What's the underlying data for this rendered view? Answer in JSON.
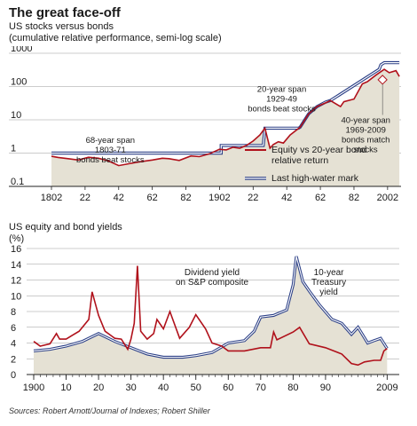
{
  "header": {
    "title": "The great face-off",
    "subtitle": "US stocks versus bonds",
    "subtitle2": "(cumulative relative performance, semi-log scale)"
  },
  "chart_data": [
    {
      "type": "line",
      "yscale": "log",
      "ylim": [
        0.1,
        1000
      ],
      "xlim": [
        1802,
        2010
      ],
      "ytick_labels": [
        "1000",
        "100",
        "10",
        "1",
        "0.1"
      ],
      "yticks": [
        1000,
        100,
        10,
        1,
        0.1
      ],
      "xtick_labels": [
        "1802",
        "22",
        "42",
        "62",
        "82",
        "1902",
        "22",
        "42",
        "62",
        "82",
        "2002"
      ],
      "xticks": [
        1802,
        1822,
        1842,
        1862,
        1882,
        1902,
        1922,
        1942,
        1962,
        1982,
        2002
      ],
      "colors": {
        "equity": "#b0111b",
        "hwm_outer": "#2b3f86",
        "hwm_inner": "#ffffff",
        "fill": "#e5e1d4"
      },
      "series": [
        {
          "name": "Equity vs 20-year bond relative return",
          "x": [
            1802,
            1806,
            1812,
            1818,
            1824,
            1830,
            1836,
            1842,
            1848,
            1855,
            1862,
            1868,
            1872,
            1878,
            1885,
            1890,
            1896,
            1902,
            1906,
            1910,
            1914,
            1918,
            1922,
            1926,
            1929,
            1932,
            1934,
            1937,
            1940,
            1944,
            1950,
            1955,
            1960,
            1966,
            1968,
            1974,
            1976,
            1982,
            1987,
            1990,
            1995,
            2000,
            2003,
            2007,
            2009
          ],
          "y": [
            0.8,
            0.74,
            0.68,
            0.62,
            0.75,
            0.7,
            0.58,
            0.42,
            0.48,
            0.55,
            0.62,
            0.7,
            0.68,
            0.6,
            0.82,
            0.78,
            0.95,
            1.3,
            1.25,
            1.5,
            1.4,
            1.7,
            2.3,
            3.5,
            5.6,
            1.4,
            1.8,
            2.2,
            2.0,
            3.5,
            6.0,
            15,
            25,
            34,
            38,
            25,
            35,
            42,
            120,
            140,
            220,
            330,
            260,
            300,
            200
          ]
        },
        {
          "name": "Last high-water mark",
          "x": [
            1802,
            1903,
            1903,
            1928,
            1929,
            1929,
            1949,
            1950,
            1955,
            1960,
            1965,
            1968,
            1997,
            1998,
            2000,
            2009
          ],
          "y": [
            1.0,
            1.0,
            1.7,
            1.7,
            5.6,
            5.6,
            5.6,
            6.0,
            15,
            25,
            34,
            38,
            330,
            450,
            520,
            520
          ]
        }
      ],
      "annotations": [
        {
          "lines": [
            "68-year span",
            "1803-71",
            "bonds beat stocks"
          ],
          "x": 1837,
          "y": 2
        },
        {
          "lines": [
            "20-year span",
            "1929-49",
            "bonds beat stocks"
          ],
          "x": 1939,
          "y": 70
        },
        {
          "lines": [
            "40-year span",
            "1969-2009",
            "bonds match",
            "stocks"
          ],
          "x": 1989,
          "y": 8
        }
      ]
    },
    {
      "type": "line",
      "title": "US equity and bond yields",
      "ylabel": "(%)",
      "ylim": [
        0,
        16
      ],
      "xlim": [
        1900,
        2010
      ],
      "ytick_labels": [
        "16",
        "14",
        "12",
        "10",
        "8",
        "6",
        "4",
        "2",
        "0"
      ],
      "yticks": [
        16,
        14,
        12,
        10,
        8,
        6,
        4,
        2,
        0
      ],
      "xtick_labels": [
        "1900",
        "10",
        "20",
        "30",
        "40",
        "50",
        "60",
        "70",
        "80",
        "90",
        "2009"
      ],
      "xticks": [
        1900,
        1910,
        1920,
        1930,
        1940,
        1950,
        1960,
        1970,
        1980,
        1990,
        2009
      ],
      "colors": {
        "dividend": "#b0111b",
        "treasury": "#2b3f86",
        "fill": "#e5e1d4"
      },
      "series": [
        {
          "name": "Dividend yield on S&P composite",
          "x": [
            1900,
            1902,
            1905,
            1907,
            1908,
            1910,
            1912,
            1914,
            1917,
            1918,
            1920,
            1922,
            1925,
            1927,
            1929,
            1930,
            1931,
            1932,
            1933,
            1935,
            1937,
            1938,
            1940,
            1942,
            1945,
            1948,
            1950,
            1953,
            1955,
            1958,
            1960,
            1965,
            1970,
            1973,
            1974,
            1975,
            1980,
            1982,
            1985,
            1990,
            1995,
            1998,
            2000,
            2002,
            2005,
            2007,
            2008,
            2009
          ],
          "y": [
            4.2,
            3.6,
            3.9,
            5.2,
            4.5,
            4.5,
            5.0,
            5.5,
            7.0,
            10.5,
            7.5,
            5.5,
            4.6,
            4.5,
            3.2,
            4.5,
            6.5,
            13.8,
            5.5,
            4.5,
            5.2,
            7.0,
            5.8,
            8.0,
            4.6,
            6.0,
            7.6,
            5.8,
            4.0,
            3.6,
            3.0,
            3.0,
            3.4,
            3.4,
            5.4,
            4.4,
            5.4,
            6.0,
            3.9,
            3.4,
            2.6,
            1.4,
            1.2,
            1.6,
            1.8,
            1.8,
            3.0,
            3.3
          ]
        },
        {
          "name": "10-year Treasury yield",
          "x": [
            1900,
            1905,
            1910,
            1915,
            1920,
            1925,
            1930,
            1935,
            1940,
            1946,
            1950,
            1955,
            1960,
            1965,
            1968,
            1970,
            1974,
            1978,
            1980,
            1981,
            1983,
            1985,
            1988,
            1992,
            1995,
            1998,
            2000,
            2003,
            2005,
            2007,
            2009
          ],
          "y": [
            3.0,
            3.2,
            3.6,
            4.2,
            5.2,
            4.2,
            3.4,
            2.6,
            2.2,
            2.2,
            2.4,
            2.8,
            4.0,
            4.3,
            5.5,
            7.3,
            7.5,
            8.2,
            11.4,
            15.0,
            11.8,
            10.6,
            8.9,
            7.0,
            6.5,
            5.1,
            6.0,
            4.0,
            4.3,
            4.6,
            3.3
          ]
        }
      ],
      "annotations": [
        {
          "lines": [
            "Dividend yield",
            "on S&P composite"
          ],
          "x": 1955,
          "y": 12.6
        },
        {
          "lines": [
            "10-year",
            "Treasury",
            "yield"
          ],
          "x": 1991,
          "y": 12.6
        }
      ]
    }
  ],
  "legend": {
    "equity": "Equity vs 20-year bond relative return",
    "equity_l1": "Equity vs 20-year bond",
    "equity_l2": "relative return",
    "hwm": "Last high-water mark"
  },
  "section2": {
    "title": "US equity and bond yields",
    "unit": "(%)"
  },
  "source": "Sources: Robert Arnott/Journal of Indexes; Robert Shiller"
}
